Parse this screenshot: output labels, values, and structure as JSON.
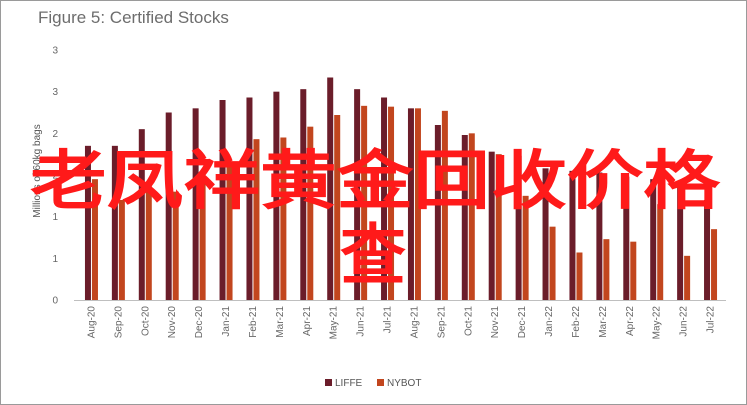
{
  "title": "Figure 5: Certified Stocks",
  "overlay": {
    "line1": "老凤祥黄金回收价格",
    "line2": "查"
  },
  "colors": {
    "liffe": "#6b1d2a",
    "nybot": "#c2461e",
    "axis": "#bfbfbf",
    "overlay": "#ff1a1a"
  },
  "chart_data": {
    "type": "bar",
    "title": "Figure 5: Certified Stocks",
    "ylabel": "Millions of 60kg bags",
    "xlabel": "",
    "ylim": [
      0,
      3
    ],
    "y_ticks": [
      "0",
      "1",
      "1",
      "2",
      "2",
      "3",
      "3"
    ],
    "y_tick_values": [
      0,
      0.5,
      1.0,
      1.5,
      2.0,
      2.5,
      3.0
    ],
    "grid": false,
    "legend": "bottom",
    "categories": [
      "Aug-20",
      "Sep-20",
      "Oct-20",
      "Nov-20",
      "Dec-20",
      "Jan-21",
      "Feb-21",
      "Mar-21",
      "Apr-21",
      "May-21",
      "Jun-21",
      "Jul-21",
      "Aug-21",
      "Sep-21",
      "Oct-21",
      "Nov-21",
      "Dec-21",
      "Jan-22",
      "Feb-22",
      "Mar-22",
      "Apr-22",
      "May-22",
      "Jun-22",
      "Jul-22"
    ],
    "series": [
      {
        "name": "LIFFE",
        "values": [
          1.85,
          1.85,
          2.05,
          2.25,
          2.3,
          2.4,
          2.43,
          2.5,
          2.53,
          2.67,
          2.53,
          2.43,
          2.3,
          2.1,
          1.98,
          1.78,
          1.73,
          1.58,
          1.55,
          1.53,
          1.48,
          1.45,
          1.35,
          1.2
        ]
      },
      {
        "name": "NYBOT",
        "values": [
          1.45,
          1.2,
          1.4,
          1.3,
          1.45,
          1.6,
          1.93,
          1.95,
          2.08,
          2.22,
          2.33,
          2.32,
          2.3,
          2.27,
          2.0,
          1.75,
          1.25,
          0.88,
          0.57,
          0.73,
          0.7,
          1.15,
          0.53,
          0.85
        ]
      }
    ]
  }
}
